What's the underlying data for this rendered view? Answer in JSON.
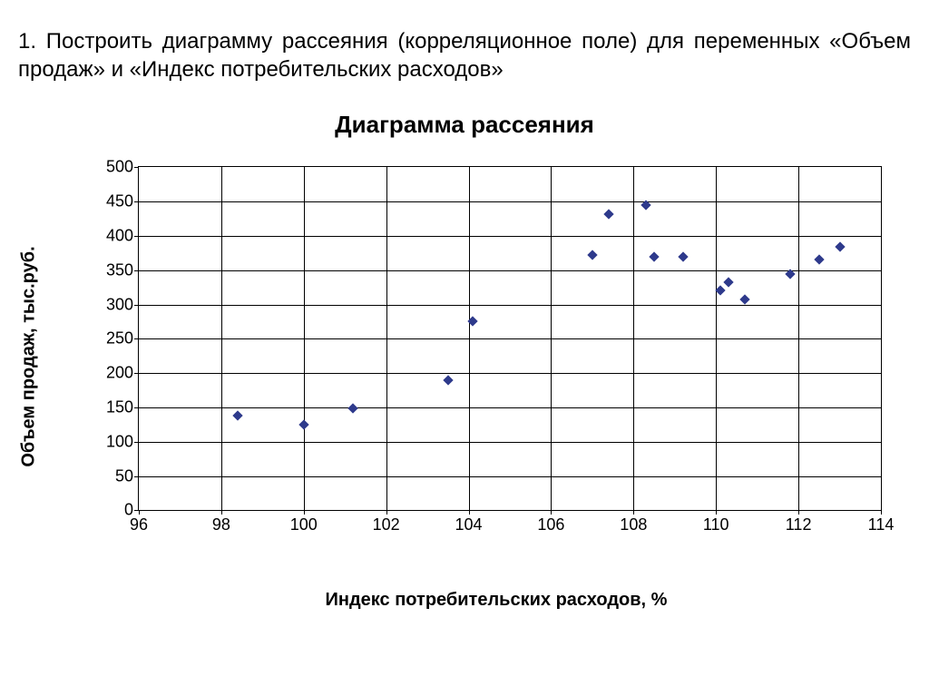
{
  "task": "1. Построить диаграмму рассеяния (корреляционное поле) для переменных «Объем продаж» и «Индекс потребительских расходов»",
  "chart": {
    "type": "scatter",
    "title": "Диаграмма рассеяния",
    "xlabel": "Индекс потребительских расходов, %",
    "ylabel": "Объем продаж, тыс.руб.",
    "xlim": [
      96,
      114
    ],
    "ylim": [
      0,
      500
    ],
    "xticks": [
      96,
      98,
      100,
      102,
      104,
      106,
      108,
      110,
      112,
      114
    ],
    "yticks": [
      0,
      50,
      100,
      150,
      200,
      250,
      300,
      350,
      400,
      450,
      500
    ],
    "background_color": "#ffffff",
    "grid_color": "#000000",
    "border_color": "#000000",
    "tick_fontsize": 18,
    "label_fontsize": 20,
    "title_fontsize": 26,
    "marker_style": "diamond",
    "marker_color": "#2e3a8c",
    "marker_size": 8,
    "points": [
      {
        "x": 98.4,
        "y": 138
      },
      {
        "x": 100.0,
        "y": 125
      },
      {
        "x": 101.2,
        "y": 148
      },
      {
        "x": 103.5,
        "y": 190
      },
      {
        "x": 104.1,
        "y": 275
      },
      {
        "x": 107.0,
        "y": 372
      },
      {
        "x": 107.4,
        "y": 432
      },
      {
        "x": 108.3,
        "y": 445
      },
      {
        "x": 108.5,
        "y": 370
      },
      {
        "x": 109.2,
        "y": 370
      },
      {
        "x": 110.1,
        "y": 320
      },
      {
        "x": 110.3,
        "y": 332
      },
      {
        "x": 110.7,
        "y": 308
      },
      {
        "x": 111.8,
        "y": 345
      },
      {
        "x": 112.5,
        "y": 365
      },
      {
        "x": 113.0,
        "y": 384
      }
    ]
  }
}
